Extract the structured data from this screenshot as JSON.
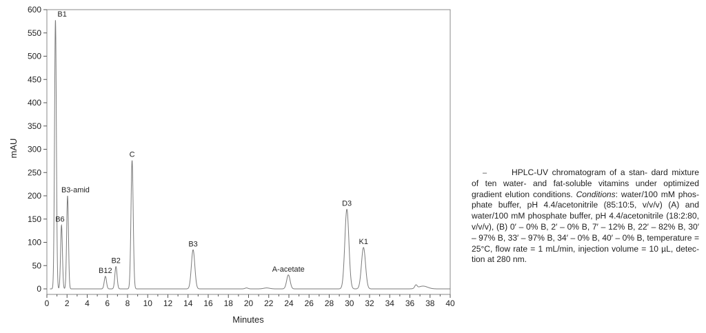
{
  "chart_data": {
    "type": "line",
    "title": "",
    "xlabel": "Minutes",
    "ylabel": "mAU",
    "xlim": [
      0,
      40
    ],
    "ylim": [
      -10,
      600
    ],
    "x_ticks": [
      0,
      2,
      4,
      6,
      8,
      10,
      12,
      14,
      16,
      18,
      20,
      22,
      24,
      26,
      28,
      30,
      32,
      34,
      36,
      38,
      40
    ],
    "y_ticks": [
      0,
      50,
      100,
      150,
      200,
      250,
      300,
      350,
      400,
      450,
      500,
      550,
      600
    ],
    "grid": false,
    "series": [
      {
        "peaks": [
          {
            "label": "B1",
            "time": 0.85,
            "height": 578
          },
          {
            "label": "B6",
            "time": 1.45,
            "height": 137
          },
          {
            "label": "B3-amid",
            "time": 2.05,
            "height": 200
          },
          {
            "label": "B12",
            "time": 5.8,
            "height": 27
          },
          {
            "label": "B2",
            "time": 6.85,
            "height": 48
          },
          {
            "label": "C",
            "time": 8.45,
            "height": 276
          },
          {
            "label": "B3",
            "time": 14.5,
            "height": 84
          },
          {
            "label": "A-acetate",
            "time": 23.95,
            "height": 30
          },
          {
            "label": "D3",
            "time": 29.75,
            "height": 171
          },
          {
            "label": "K1",
            "time": 31.4,
            "height": 89
          }
        ]
      }
    ]
  },
  "caption": {
    "marker": "–",
    "lines": [
      "HPLC-UV chromatogram of a stan-",
      "dard mixture of ten water- and fat-soluble",
      "vitamins under optimized gradient elution",
      "conditions.",
      "Conditions",
      ": water/100 mM phos-",
      "phate buffer, pH 4.4/acetonitrile (85:10:5,",
      "v/v/v) (A) and water/100 mM phosphate",
      "buffer, pH 4.4/acetonitrile (18:2:80, v/v/v),",
      "(B) 0′ – 0% B, 2′ – 0% B, 7′ – 12% B, 22′ –",
      "82% B, 30′ – 97% B, 33′ – 97% B, 34′ – 0% B,",
      "40′ – 0% B, temperature = 25°C, flow rate =",
      "1 mL/min, injection volume = 10 µL, detec-",
      "tion at 280 nm."
    ]
  }
}
